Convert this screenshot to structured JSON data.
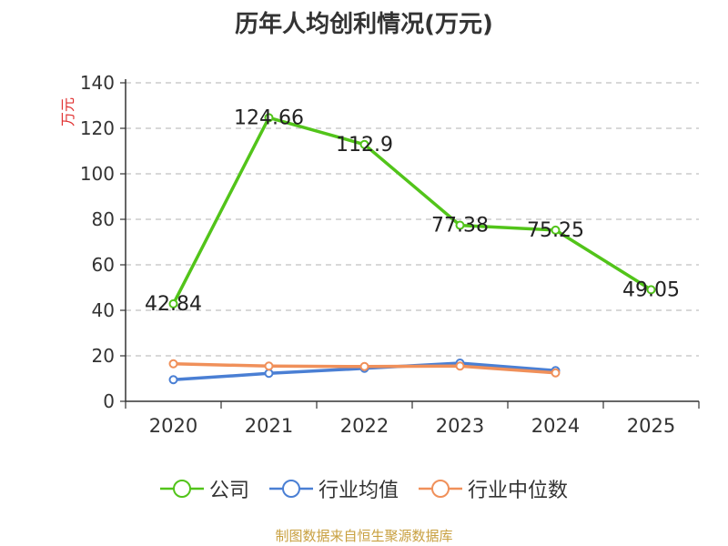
{
  "chart_data": {
    "type": "line",
    "title": "历年人均创利情况(万元)",
    "ylabel": "万元",
    "xlabel": "",
    "ylim": [
      0,
      140
    ],
    "yticks": [
      0,
      20,
      40,
      60,
      80,
      100,
      120,
      140
    ],
    "categories": [
      "2020",
      "2021",
      "2022",
      "2023",
      "2024",
      "2025"
    ],
    "grid": true,
    "legend_position": "bottom",
    "series": [
      {
        "name": "公司",
        "color": "#52c41a",
        "values": [
          42.84,
          124.66,
          112.9,
          77.38,
          75.25,
          49.05
        ],
        "labels": [
          "42.84",
          "124.66",
          "112.9",
          "77.38",
          "75.25",
          "49.05"
        ]
      },
      {
        "name": "行业均值",
        "color": "#4a7fd4",
        "values": [
          9.5,
          12.3,
          14.5,
          16.8,
          13.5,
          null
        ]
      },
      {
        "name": "行业中位数",
        "color": "#f0905a",
        "values": [
          16.5,
          15.5,
          15.3,
          15.5,
          12.5,
          null
        ]
      }
    ]
  },
  "footer": {
    "source": "制图数据来自恒生聚源数据库",
    "source_color": "#c8a040"
  },
  "colors": {
    "axis": "#333333",
    "grid": "#cccccc",
    "ylabel": "#e03030"
  }
}
